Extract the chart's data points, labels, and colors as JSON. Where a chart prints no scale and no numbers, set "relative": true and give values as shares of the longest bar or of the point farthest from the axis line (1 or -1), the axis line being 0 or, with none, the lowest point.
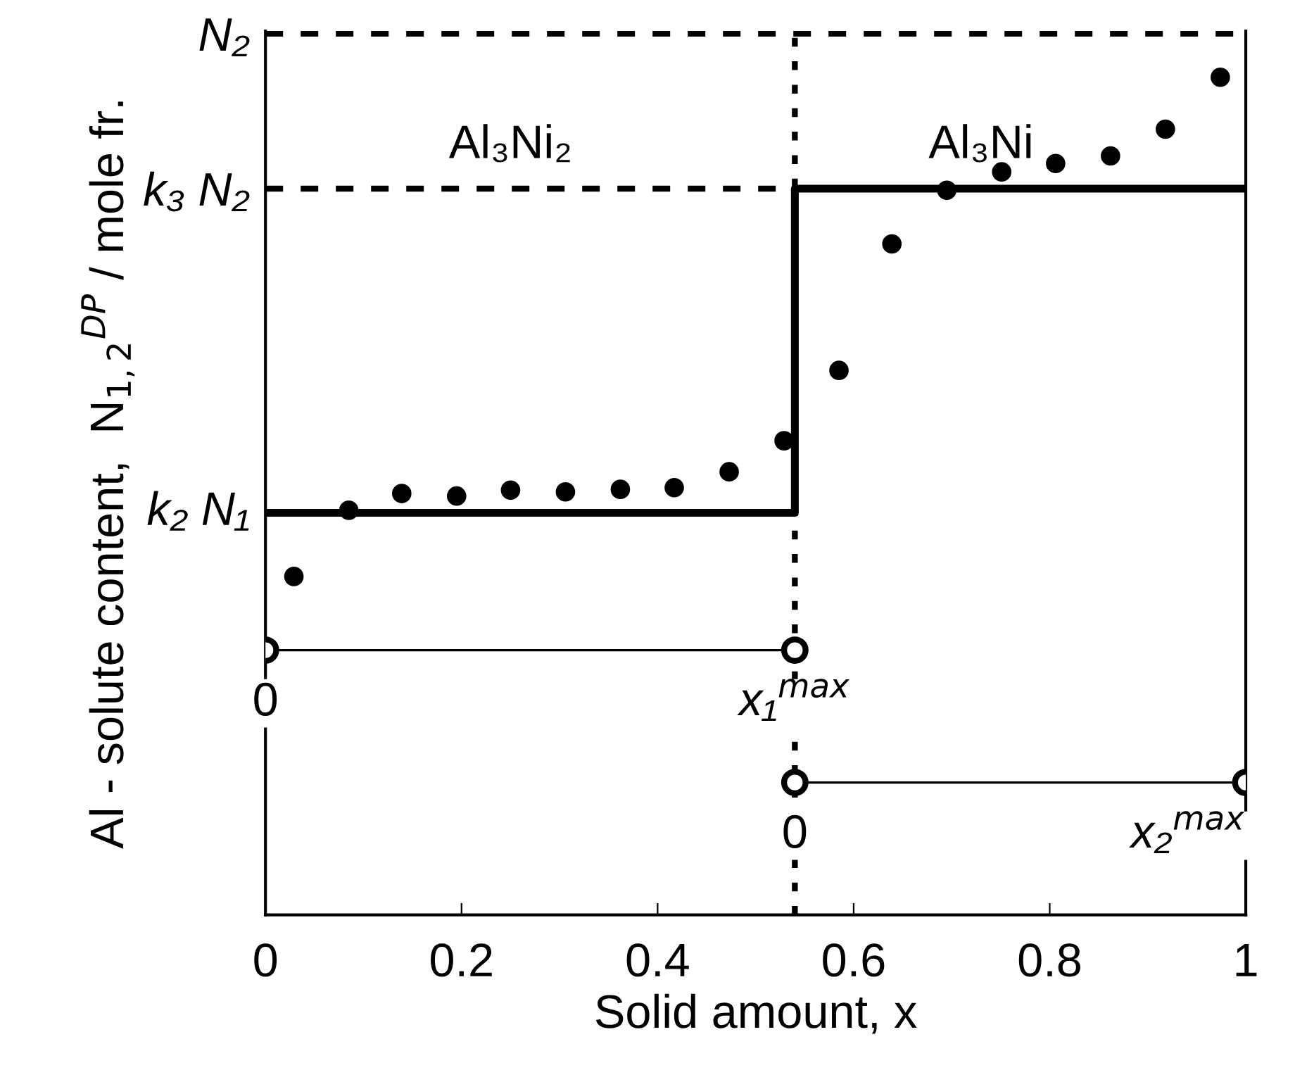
{
  "chart_data": {
    "type": "scatter",
    "relative": true,
    "xlabel": "Solid amount, x",
    "ylabel": "Al - solute content,  N$_{1,2}$$^{DP}$ / mole fr.",
    "xlim": [
      0,
      1
    ],
    "xticks": [
      0,
      0.2,
      0.4,
      0.6,
      0.8,
      1
    ],
    "grid": false,
    "legend": false,
    "series": [
      {
        "color": "#000000",
        "marker": "circle",
        "x": [
          0.029,
          0.085,
          0.139,
          0.195,
          0.25,
          0.306,
          0.362,
          0.417,
          0.473,
          0.529,
          0.585,
          0.639,
          0.695,
          0.751,
          0.806,
          0.862,
          0.918,
          0.974
        ],
        "values": [
          0.404,
          0.483,
          0.503,
          0.5,
          0.507,
          0.505,
          0.508,
          0.51,
          0.529,
          0.566,
          0.65,
          0.801,
          0.865,
          0.887,
          0.897,
          0.906,
          0.938,
          1.0
        ]
      },
      {
        "type": "line",
        "color": "#000000",
        "marker": "none",
        "line_style": "solid",
        "x": [
          0,
          0.54,
          0.54,
          1
        ],
        "values": [
          0.48,
          0.48,
          0.867,
          0.867
        ]
      },
      {
        "type": "line",
        "color": "#000000",
        "marker": "open circle",
        "line_style": "solid",
        "x": [
          0,
          0.54
        ],
        "values": [
          0.316,
          0.316
        ]
      },
      {
        "type": "line",
        "color": "#000000",
        "marker": "open circle",
        "line_style": "solid",
        "x": [
          0.54,
          1
        ],
        "values": [
          0.158,
          0.158
        ]
      }
    ],
    "ref_lines": [
      {
        "axis": "y",
        "value": 1.052,
        "label": "N₂",
        "line_style": "dashed",
        "color": "#000000"
      },
      {
        "axis": "y",
        "value": 0.867,
        "label": "k₃ N₂",
        "line_style": "dashed",
        "color": "#000000"
      },
      {
        "axis": "x",
        "value": 0.54,
        "line_style": "dotted",
        "color": "#000000"
      }
    ],
    "annotations": [
      "Al₃Ni₂",
      "Al₃Ni",
      {
        "text": "k₂ N₁",
        "x": 0,
        "y": 0.48
      },
      {
        "text": "0",
        "x": 0,
        "y": 0.316
      },
      {
        "text": "x₁$^{max}$",
        "x": 0.54,
        "y": 0.316
      },
      {
        "text": "0",
        "x": 0.54,
        "y": 0.158
      },
      {
        "text": "x₂$^{max}$",
        "x": 1,
        "y": 0.158
      }
    ]
  }
}
